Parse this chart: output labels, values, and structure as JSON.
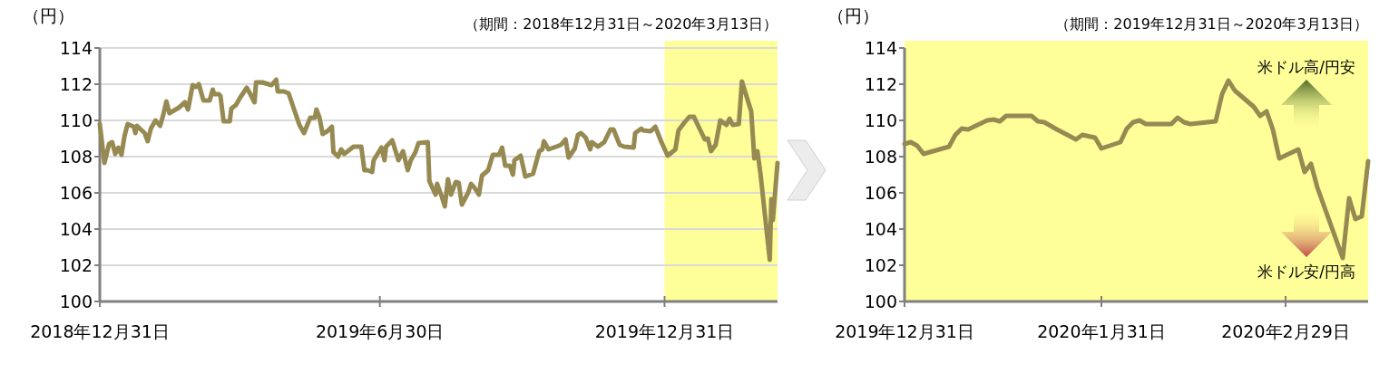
{
  "chart_data": [
    {
      "type": "line",
      "ylabel": "（円）",
      "subtitle": "（期間：2018年12月31日～2020年3月13日）",
      "xlim": [
        "2018-12-31",
        "2020-03-13"
      ],
      "xticks": [
        {
          "value": "2018-12-31",
          "label": "2018年12月31日"
        },
        {
          "value": "2019-06-30",
          "label": "2019年6月30日"
        },
        {
          "value": "2019-12-31",
          "label": "2019年12月31日"
        }
      ],
      "ylim": [
        100,
        114
      ],
      "yticks": [
        100,
        102,
        104,
        106,
        108,
        110,
        112,
        114
      ],
      "grid": "y",
      "bands": [
        {
          "axis": "x",
          "from": "2019-12-31",
          "to": "2020-03-13",
          "color": "#ffff99"
        }
      ],
      "series": [
        {
          "color": "#968a52",
          "x": [
            "2018-12-31",
            "2019-01-03",
            "2019-01-06",
            "2019-01-08",
            "2019-01-10",
            "2019-01-12",
            "2019-01-14",
            "2019-01-16",
            "2019-01-18",
            "2019-01-22",
            "2019-01-23",
            "2019-01-24",
            "2019-01-29",
            "2019-01-31",
            "2019-02-02",
            "2019-02-05",
            "2019-02-08",
            "2019-02-10",
            "2019-02-12",
            "2019-02-14",
            "2019-02-20",
            "2019-02-22",
            "2019-02-24",
            "2019-02-26",
            "2019-03-01",
            "2019-03-03",
            "2019-03-05",
            "2019-03-08",
            "2019-03-12",
            "2019-03-14",
            "2019-03-15",
            "2019-03-18",
            "2019-03-19",
            "2019-03-21",
            "2019-03-25",
            "2019-03-26",
            "2019-03-29",
            "2019-04-01",
            "2019-04-05",
            "2019-04-07",
            "2019-04-10",
            "2019-04-11",
            "2019-04-15",
            "2019-04-21",
            "2019-04-24",
            "2019-04-25",
            "2019-04-29",
            "2019-05-02",
            "2019-05-05",
            "2019-05-09",
            "2019-05-12",
            "2019-05-16",
            "2019-05-19",
            "2019-05-20",
            "2019-05-22",
            "2019-05-24",
            "2019-05-27",
            "2019-05-30",
            "2019-05-31",
            "2019-06-03",
            "2019-06-05",
            "2019-06-07",
            "2019-06-13",
            "2019-06-18",
            "2019-06-20",
            "2019-06-22",
            "2019-06-25",
            "2019-06-26",
            "2019-07-01",
            "2019-07-03",
            "2019-07-04",
            "2019-07-08",
            "2019-07-12",
            "2019-07-15",
            "2019-07-18",
            "2019-07-20",
            "2019-07-23",
            "2019-07-25",
            "2019-07-31",
            "2019-08-01",
            "2019-08-05",
            "2019-08-06",
            "2019-08-09",
            "2019-08-11",
            "2019-08-13",
            "2019-08-15",
            "2019-08-18",
            "2019-08-20",
            "2019-08-22",
            "2019-08-26",
            "2019-08-28",
            "2019-08-30",
            "2019-09-02",
            "2019-09-04",
            "2019-09-08",
            "2019-09-11",
            "2019-09-15",
            "2019-09-17",
            "2019-09-19",
            "2019-09-22",
            "2019-09-24",
            "2019-09-25",
            "2019-09-29",
            "2019-10-02",
            "2019-10-07",
            "2019-10-11",
            "2019-10-13",
            "2019-10-14",
            "2019-10-17",
            "2019-10-22",
            "2019-10-25",
            "2019-10-28",
            "2019-10-30",
            "2019-11-03",
            "2019-11-05",
            "2019-11-07",
            "2019-11-10",
            "2019-11-13",
            "2019-11-14",
            "2019-11-18",
            "2019-11-22",
            "2019-11-26",
            "2019-11-28",
            "2019-12-02",
            "2019-12-05",
            "2019-12-11",
            "2019-12-12",
            "2019-12-16",
            "2019-12-17",
            "2019-12-22",
            "2019-12-25",
            "2019-12-29",
            "2020-01-02",
            "2020-01-07",
            "2020-01-09",
            "2020-01-13",
            "2020-01-16",
            "2020-01-19",
            "2020-01-22",
            "2020-01-26",
            "2020-01-28",
            "2020-01-30",
            "2020-02-02",
            "2020-02-05",
            "2020-02-09",
            "2020-02-11",
            "2020-02-13",
            "2020-02-17",
            "2020-02-19",
            "2020-02-25",
            "2020-02-27",
            "2020-02-29",
            "2020-03-02",
            "2020-03-08",
            "2020-03-09",
            "2020-03-10",
            "2020-03-13"
          ],
          "values": [
            109.8,
            107.65,
            108.7,
            108.8,
            108.15,
            108.5,
            108.1,
            109.15,
            109.8,
            109.65,
            109.3,
            109.7,
            109.3,
            108.85,
            109.55,
            110.0,
            109.7,
            110.3,
            111.05,
            110.4,
            110.7,
            110.85,
            111.0,
            110.6,
            111.95,
            111.85,
            112.0,
            111.1,
            111.1,
            111.7,
            111.45,
            111.45,
            111.35,
            109.95,
            109.95,
            110.65,
            110.85,
            111.3,
            111.8,
            111.5,
            111.0,
            112.1,
            112.1,
            111.95,
            112.25,
            111.6,
            111.6,
            111.5,
            110.75,
            109.75,
            109.3,
            110.15,
            110.15,
            110.6,
            110.15,
            109.25,
            109.4,
            109.65,
            108.25,
            108.0,
            108.4,
            108.15,
            108.55,
            108.55,
            107.25,
            107.25,
            107.15,
            107.8,
            108.5,
            107.8,
            108.55,
            108.9,
            107.8,
            108.3,
            107.25,
            107.8,
            108.25,
            108.75,
            108.8,
            106.65,
            105.9,
            106.5,
            105.8,
            105.25,
            106.75,
            105.9,
            106.6,
            106.55,
            105.35,
            106.0,
            106.5,
            106.3,
            105.9,
            106.95,
            107.25,
            108.1,
            108.1,
            108.5,
            107.5,
            107.5,
            107.0,
            107.8,
            108.05,
            106.9,
            107.05,
            108.3,
            108.4,
            108.85,
            108.4,
            108.55,
            108.65,
            108.95,
            107.95,
            108.45,
            109.2,
            109.3,
            109.05,
            108.4,
            108.8,
            108.55,
            108.8,
            109.5,
            109.5,
            108.65,
            108.55,
            108.5,
            109.3,
            109.55,
            109.45,
            109.4,
            109.65,
            108.8,
            108.05,
            108.4,
            109.45,
            109.9,
            110.2,
            110.2,
            109.65,
            108.95,
            109.0,
            108.3,
            108.65,
            110.0,
            109.75,
            110.1,
            109.75,
            109.8,
            112.15,
            110.5,
            107.9,
            108.3,
            107.05,
            102.3,
            105.65,
            104.5,
            107.65
          ]
        }
      ]
    },
    {
      "type": "line",
      "ylabel": "（円）",
      "subtitle": "（期間：2019年12月31日～2020年3月13日）",
      "xlim": [
        "2019-12-31",
        "2020-03-13"
      ],
      "xticks": [
        {
          "value": "2019-12-31",
          "label": "2019年12月31日"
        },
        {
          "value": "2020-01-31",
          "label": "2020年1月31日"
        },
        {
          "value": "2020-02-29",
          "label": "2020年2月29日"
        }
      ],
      "ylim": [
        100,
        114
      ],
      "yticks": [
        100,
        102,
        104,
        106,
        108,
        110,
        112,
        114
      ],
      "bands": [
        {
          "axis": "x",
          "from": "2019-12-31",
          "to": "2020-03-13",
          "color": "#ffff99"
        }
      ],
      "annotations": [
        "米ドル高/円安",
        "米ドル安/円高"
      ],
      "series": [
        {
          "color": "#968a52",
          "x": [
            "2019-12-31",
            "2020-01-01",
            "2020-01-02",
            "2020-01-03",
            "2020-01-07",
            "2020-01-08",
            "2020-01-09",
            "2020-01-10",
            "2020-01-13",
            "2020-01-14",
            "2020-01-15",
            "2020-01-16",
            "2020-01-20",
            "2020-01-21",
            "2020-01-22",
            "2020-01-24",
            "2020-01-27",
            "2020-01-28",
            "2020-01-30",
            "2020-01-31",
            "2020-02-03",
            "2020-02-04",
            "2020-02-05",
            "2020-02-06",
            "2020-02-07",
            "2020-02-11",
            "2020-02-12",
            "2020-02-13",
            "2020-02-14",
            "2020-02-18",
            "2020-02-19",
            "2020-02-20",
            "2020-02-21",
            "2020-02-24",
            "2020-02-25",
            "2020-02-26",
            "2020-02-27",
            "2020-02-28",
            "2020-03-02",
            "2020-03-03",
            "2020-03-04",
            "2020-03-05",
            "2020-03-09",
            "2020-03-10",
            "2020-03-11",
            "2020-03-12",
            "2020-03-13"
          ],
          "values": [
            108.7,
            108.8,
            108.6,
            108.15,
            108.55,
            109.2,
            109.55,
            109.5,
            110.0,
            110.05,
            109.95,
            110.25,
            110.25,
            109.95,
            109.9,
            109.5,
            108.95,
            109.2,
            109.05,
            108.45,
            108.8,
            109.55,
            109.9,
            110.0,
            109.8,
            109.8,
            110.15,
            109.9,
            109.8,
            109.95,
            111.45,
            112.2,
            111.65,
            110.75,
            110.25,
            110.5,
            109.5,
            107.9,
            108.4,
            107.15,
            107.6,
            106.3,
            102.4,
            105.7,
            104.55,
            104.7,
            107.75
          ]
        }
      ]
    }
  ]
}
